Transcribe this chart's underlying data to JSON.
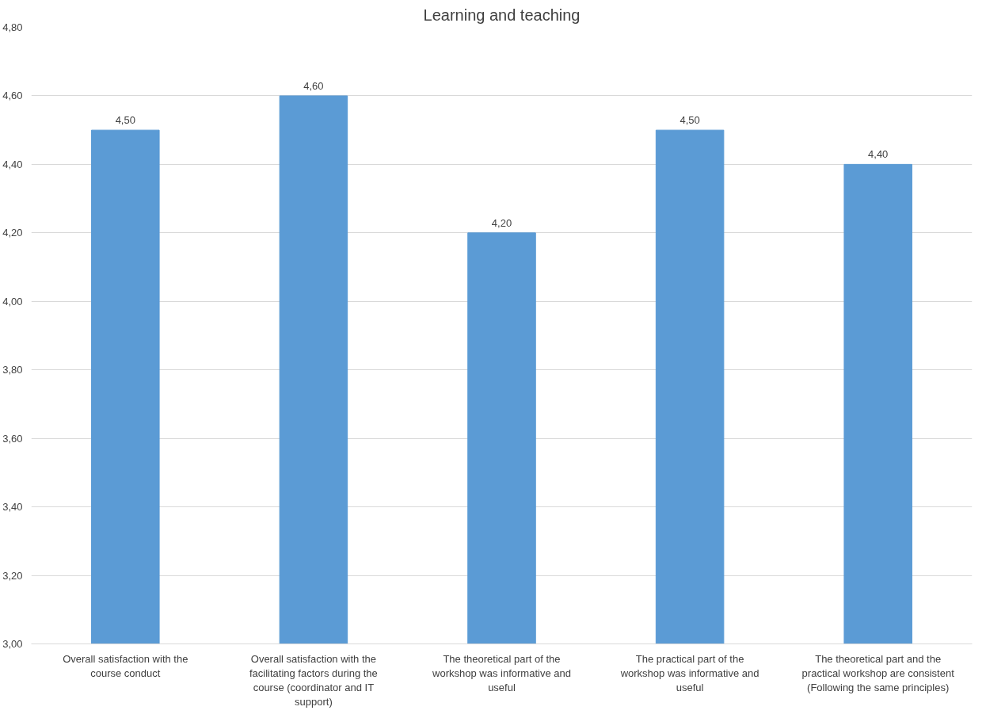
{
  "chart_data": {
    "type": "bar",
    "title": "Learning and teaching",
    "categories": [
      "Overall satisfaction with the course conduct",
      "Overall satisfaction with the facilitating factors during the course (coordinator and IT support)",
      "The theoretical part of the workshop was informative and useful",
      "The practical part of the  workshop was informative and useful",
      "The theoretical part and the practical workshop are consistent (Following the same principles)"
    ],
    "values": [
      4.5,
      4.6,
      4.2,
      4.5,
      4.4
    ],
    "value_labels": [
      "4,50",
      "4,60",
      "4,20",
      "4,50",
      "4,40"
    ],
    "color": "#5b9bd5",
    "ylim": [
      3.0,
      4.8
    ],
    "yticks": [
      {
        "value": 3.0,
        "label": "3,00"
      },
      {
        "value": 3.2,
        "label": "3,20"
      },
      {
        "value": 3.4,
        "label": "3,40"
      },
      {
        "value": 3.6,
        "label": "3,60"
      },
      {
        "value": 3.8,
        "label": "3,80"
      },
      {
        "value": 4.0,
        "label": "4,00"
      },
      {
        "value": 4.2,
        "label": "4,20"
      },
      {
        "value": 4.4,
        "label": "4,40"
      },
      {
        "value": 4.6,
        "label": "4,60"
      },
      {
        "value": 4.8,
        "label": "4,80"
      }
    ],
    "grid": "y"
  }
}
